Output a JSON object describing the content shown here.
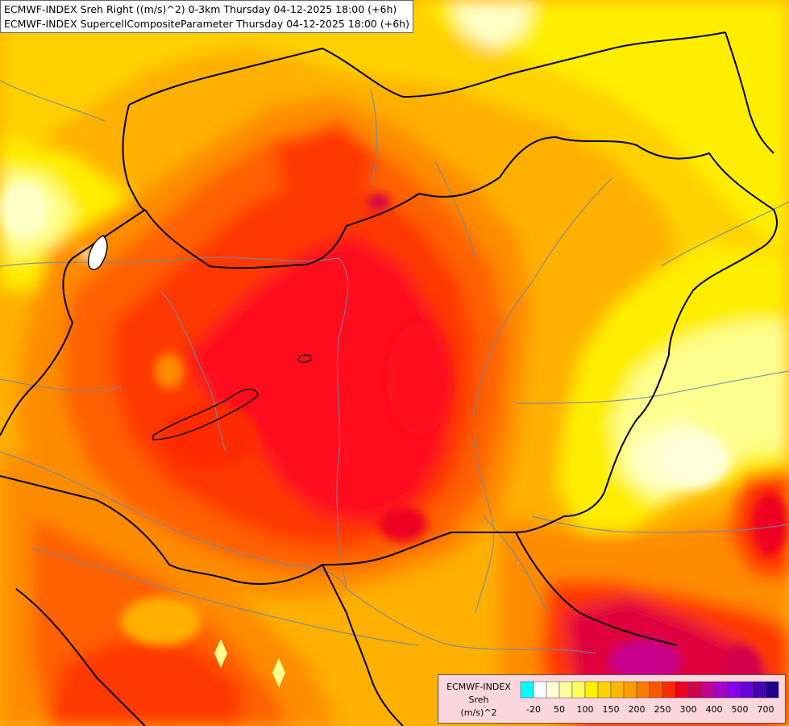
{
  "title": {
    "line1": "ECMWF-INDEX Sreh Right ((m/s)^2) 0-3km Thursday 04-12-2025 18:00 (+6h)",
    "line2": "ECMWF-INDEX SupercellCompositeParameter Thursday 04-12-2025 18:00 (+6h)"
  },
  "legend": {
    "model": "ECMWF-INDEX",
    "parameter": "Sreh",
    "unit": "(m/s)^2",
    "swatch_colors": [
      "#00ffff",
      "#ffffff",
      "#ffffd8",
      "#ffffa0",
      "#ffff60",
      "#ffee00",
      "#ffd200",
      "#ffb800",
      "#ff9c00",
      "#ff7a00",
      "#ff5500",
      "#ff2a00",
      "#ee0022",
      "#d2004c",
      "#c0008c",
      "#a800c8",
      "#8800f0",
      "#6a00d8",
      "#4600b0",
      "#1e0088"
    ],
    "tick_labels": [
      "-20",
      "50",
      "100",
      "150",
      "200",
      "250",
      "300",
      "400",
      "500",
      "700"
    ]
  },
  "map": {
    "field_colors": {
      "light": "#ffffc8",
      "pale_yellow": "#ffff90",
      "yellow": "#fff000",
      "gold": "#ffd000",
      "amber": "#ffb000",
      "orange": "#ff8c00",
      "dark_orange": "#ff6000",
      "red_orange": "#ff3800",
      "red": "#ff0a1e",
      "crimson": "#e0003c",
      "magenta": "#c8008c"
    }
  }
}
